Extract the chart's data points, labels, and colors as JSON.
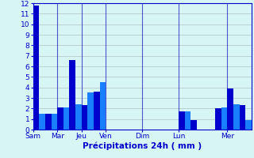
{
  "bars": [
    {
      "x": 0,
      "height": 11.8,
      "color": "#0000cc"
    },
    {
      "x": 1,
      "height": 1.5,
      "color": "#1a7fff"
    },
    {
      "x": 2,
      "height": 1.5,
      "color": "#0000cc"
    },
    {
      "x": 3,
      "height": 1.5,
      "color": "#1a7fff"
    },
    {
      "x": 4,
      "height": 2.1,
      "color": "#0000cc"
    },
    {
      "x": 5,
      "height": 2.1,
      "color": "#1a7fff"
    },
    {
      "x": 6,
      "height": 6.6,
      "color": "#0000cc"
    },
    {
      "x": 7,
      "height": 2.4,
      "color": "#1a7fff"
    },
    {
      "x": 8,
      "height": 2.3,
      "color": "#0000cc"
    },
    {
      "x": 9,
      "height": 3.5,
      "color": "#1a7fff"
    },
    {
      "x": 10,
      "height": 3.6,
      "color": "#0000cc"
    },
    {
      "x": 11,
      "height": 4.5,
      "color": "#1a7fff"
    },
    {
      "x": 12,
      "height": 0,
      "color": "#0000cc"
    },
    {
      "x": 13,
      "height": 0,
      "color": "#1a7fff"
    },
    {
      "x": 14,
      "height": 0,
      "color": "#0000cc"
    },
    {
      "x": 15,
      "height": 0,
      "color": "#1a7fff"
    },
    {
      "x": 16,
      "height": 0,
      "color": "#0000cc"
    },
    {
      "x": 17,
      "height": 0,
      "color": "#1a7fff"
    },
    {
      "x": 18,
      "height": 0,
      "color": "#0000cc"
    },
    {
      "x": 19,
      "height": 0,
      "color": "#1a7fff"
    },
    {
      "x": 20,
      "height": 0,
      "color": "#0000cc"
    },
    {
      "x": 21,
      "height": 0,
      "color": "#1a7fff"
    },
    {
      "x": 22,
      "height": 0,
      "color": "#0000cc"
    },
    {
      "x": 23,
      "height": 0,
      "color": "#1a7fff"
    },
    {
      "x": 24,
      "height": 1.7,
      "color": "#0000cc"
    },
    {
      "x": 25,
      "height": 1.7,
      "color": "#1a7fff"
    },
    {
      "x": 26,
      "height": 0.9,
      "color": "#0000cc"
    },
    {
      "x": 27,
      "height": 0,
      "color": "#1a7fff"
    },
    {
      "x": 28,
      "height": 0,
      "color": "#0000cc"
    },
    {
      "x": 29,
      "height": 0,
      "color": "#1a7fff"
    },
    {
      "x": 30,
      "height": 2.0,
      "color": "#0000cc"
    },
    {
      "x": 31,
      "height": 2.1,
      "color": "#1a7fff"
    },
    {
      "x": 32,
      "height": 3.9,
      "color": "#0000cc"
    },
    {
      "x": 33,
      "height": 2.4,
      "color": "#1a7fff"
    },
    {
      "x": 34,
      "height": 2.3,
      "color": "#0000cc"
    },
    {
      "x": 35,
      "height": 0.9,
      "color": "#1a7fff"
    }
  ],
  "tick_positions": [
    0,
    4,
    8,
    12,
    18,
    24,
    32
  ],
  "tick_labels": [
    "Sam",
    "Mar",
    "Jeu",
    "Ven",
    "Dim",
    "Lun",
    "Mer"
  ],
  "ylabel_ticks": [
    0,
    1,
    2,
    3,
    4,
    5,
    6,
    7,
    8,
    9,
    10,
    11,
    12
  ],
  "xlabel": "Précipitations 24h ( mm )",
  "ylim": [
    0,
    12
  ],
  "xlim": [
    0,
    36
  ],
  "bg_color": "#d8f5f5",
  "bar_width": 1.0,
  "grid_color": "#aabbbb",
  "axis_color": "#0000cc",
  "xlabel_color": "#0000cc",
  "tick_color": "#0000cc"
}
